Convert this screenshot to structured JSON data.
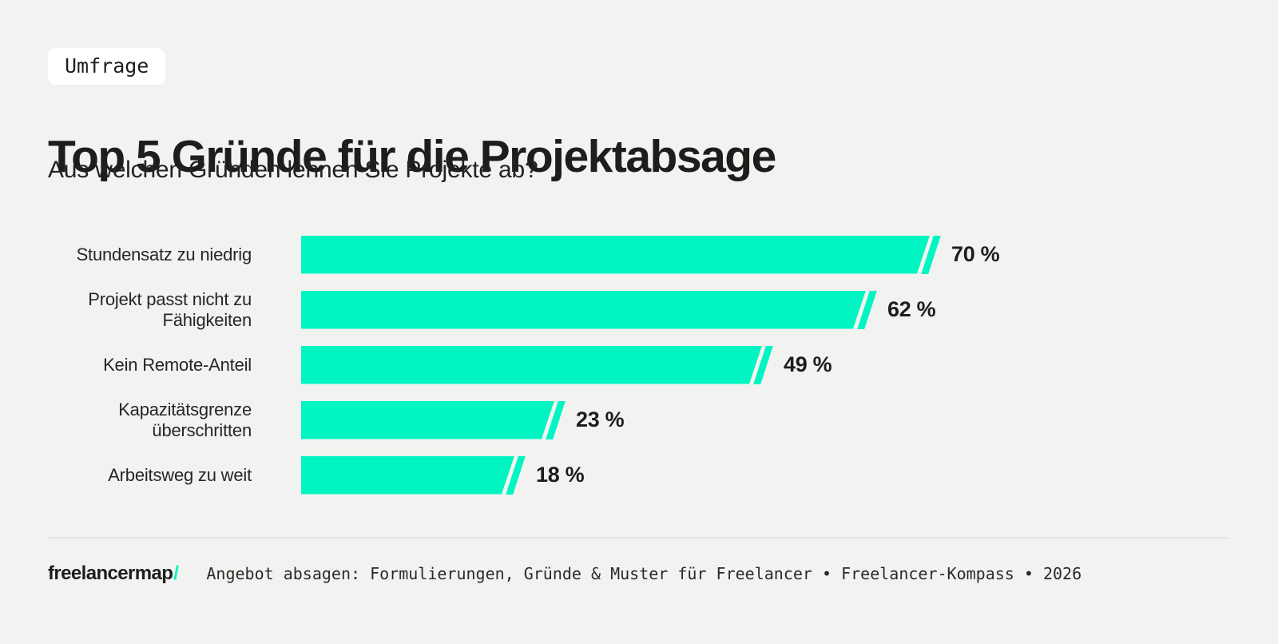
{
  "page": {
    "background_color": "#f2f2f0",
    "accent_color": "#00f5c3",
    "text_color": "#1d1d1b"
  },
  "badge": {
    "label": "Umfrage"
  },
  "header": {
    "title": "Top 5 Gründe für die Projektabsage",
    "subtitle": "Aus welchen Gründen lehnen Sie Projekte ab?"
  },
  "chart_data": {
    "type": "bar",
    "orientation": "horizontal",
    "title": "Top 5 Gründe für die Projektabsage",
    "subtitle": "Aus welchen Gründen lehnen Sie Projekte ab?",
    "categories": [
      "Stundensatz zu niedrig",
      "Projekt passt nicht zu Fähigkeiten",
      "Kein Remote-Anteil",
      "Kapazitätsgrenze überschritten",
      "Arbeitsweg zu weit"
    ],
    "values": [
      70,
      62,
      49,
      23,
      18
    ],
    "value_labels": [
      "70 %",
      "62 %",
      "49 %",
      "23 %",
      "18 %"
    ],
    "unit": "%",
    "xlim": [
      0,
      100
    ],
    "bar_color": "#00f5c3",
    "grid": false,
    "legend": false
  },
  "footer": {
    "logo_text": "freelancermap",
    "logo_slash": "/",
    "source_text": "Angebot absagen: Formulierungen, Gründe & Muster für Freelancer • Freelancer-Kompass • 2026"
  }
}
